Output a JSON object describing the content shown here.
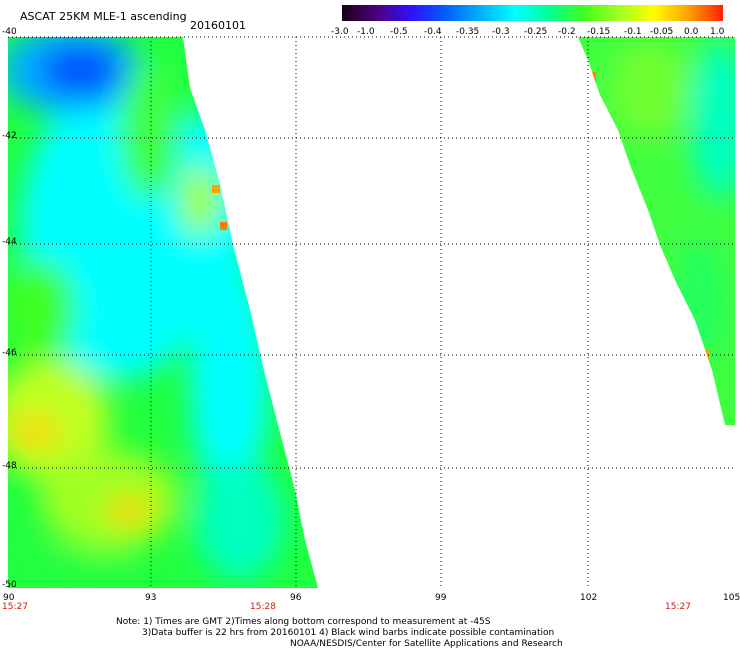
{
  "header": {
    "title": "ASCAT 25KM MLE-1 ascending",
    "date": "20160101"
  },
  "colorbar": {
    "labels": [
      "-3.0",
      "-1.0",
      "-0.5",
      "-0.4",
      "-0.35",
      "-0.3",
      "-0.25",
      "-0.2",
      "-0.15",
      "-0.1",
      "-0.05",
      "0.0",
      "1.0"
    ],
    "stops": [
      "#1a0010",
      "#4a0080",
      "#3010ff",
      "#0060ff",
      "#00b0ff",
      "#00ffff",
      "#00ff90",
      "#40ff20",
      "#a0ff20",
      "#ffff00",
      "#ffa000",
      "#ff2000"
    ]
  },
  "map": {
    "lat_labels": [
      "-40",
      "-42",
      "-44",
      "-46",
      "-48",
      "-50"
    ],
    "lon_labels": [
      "90",
      "93",
      "96",
      "99",
      "102",
      "105"
    ],
    "time_labels": [
      "15:27",
      "15:28",
      "15:27"
    ]
  },
  "notes": {
    "line1": "Note: 1) Times are GMT 2)Times along bottom correspond to measurement at -45S",
    "line2": "3)Data buffer is 22 hrs from 20160101 4) Black wind barbs indicate possible contamination",
    "line3": "NOAA/NESDIS/Center for Satellite Applications and Research"
  }
}
